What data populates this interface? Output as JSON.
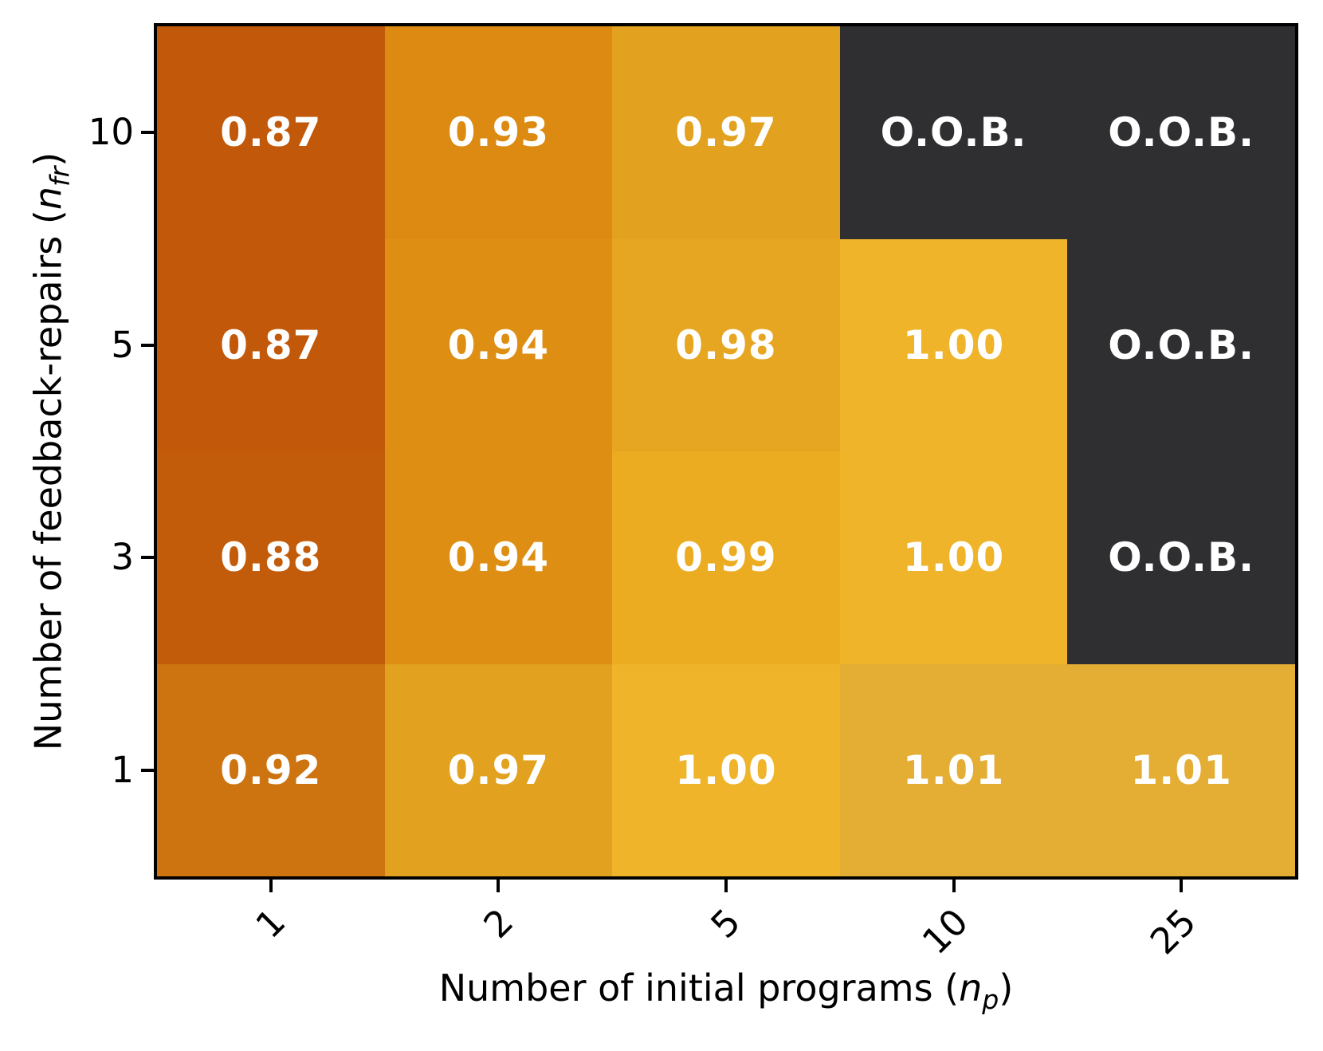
{
  "figure": {
    "background": "#ffffff",
    "frame_color": "#000000",
    "tick_color": "#000000"
  },
  "chart_data": {
    "type": "heatmap",
    "title": "",
    "xlabel": {
      "prefix": "Number of initial programs (",
      "var": "n",
      "sub": "p",
      "suffix": ")"
    },
    "ylabel": {
      "prefix": "Number of feedback-repairs (",
      "var": "n",
      "sub": "fr",
      "suffix": ")"
    },
    "x_categories": [
      "1",
      "2",
      "5",
      "10",
      "25"
    ],
    "y_categories": [
      "10",
      "5",
      "3",
      "1"
    ],
    "oob_label": "O.O.B.",
    "oob_color": "#2F2F31",
    "cell_text_color": "#ffffff",
    "grid": false,
    "rows": [
      {
        "y": "10",
        "cells": [
          {
            "label": "0.87",
            "value": 0.87,
            "color": "#C2590A"
          },
          {
            "label": "0.93",
            "value": 0.93,
            "color": "#DC8A11"
          },
          {
            "label": "0.97",
            "value": 0.97,
            "color": "#E2A11E"
          },
          {
            "label": "O.O.B.",
            "value": null,
            "color": "#2F2F31"
          },
          {
            "label": "O.O.B.",
            "value": null,
            "color": "#2F2F31"
          }
        ]
      },
      {
        "y": "5",
        "cells": [
          {
            "label": "0.87",
            "value": 0.87,
            "color": "#C2590A"
          },
          {
            "label": "0.94",
            "value": 0.94,
            "color": "#DE8F13"
          },
          {
            "label": "0.98",
            "value": 0.98,
            "color": "#E7A622"
          },
          {
            "label": "1.00",
            "value": 1.0,
            "color": "#EFB42A"
          },
          {
            "label": "O.O.B.",
            "value": null,
            "color": "#2F2F31"
          }
        ]
      },
      {
        "y": "3",
        "cells": [
          {
            "label": "0.88",
            "value": 0.88,
            "color": "#C35C0A"
          },
          {
            "label": "0.94",
            "value": 0.94,
            "color": "#DE8F13"
          },
          {
            "label": "0.99",
            "value": 0.99,
            "color": "#ECAC21"
          },
          {
            "label": "1.00",
            "value": 1.0,
            "color": "#EFB42A"
          },
          {
            "label": "O.O.B.",
            "value": null,
            "color": "#2F2F31"
          }
        ]
      },
      {
        "y": "1",
        "cells": [
          {
            "label": "0.92",
            "value": 0.92,
            "color": "#CD7410"
          },
          {
            "label": "0.97",
            "value": 0.97,
            "color": "#E2A11E"
          },
          {
            "label": "1.00",
            "value": 1.0,
            "color": "#EFB42A"
          },
          {
            "label": "1.01",
            "value": 1.01,
            "color": "#E4AD33"
          },
          {
            "label": "1.01",
            "value": 1.01,
            "color": "#E4AD33"
          }
        ]
      }
    ]
  }
}
